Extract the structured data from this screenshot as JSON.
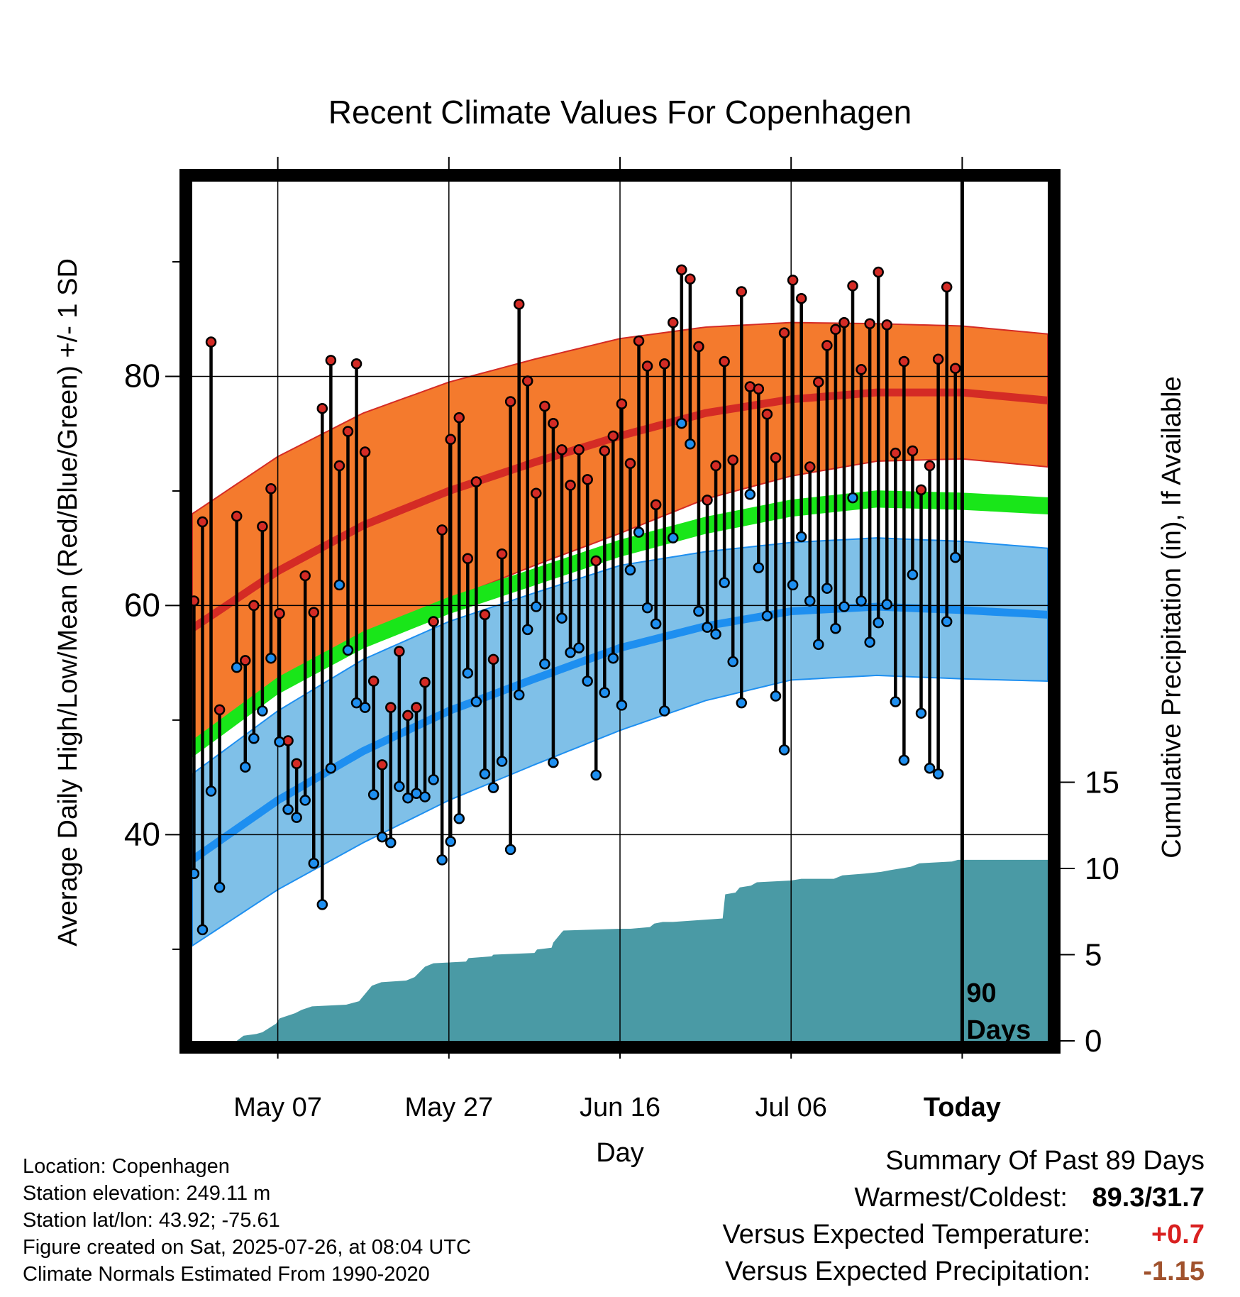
{
  "chart_data": {
    "type": "line",
    "title": "Recent Climate Values For Copenhagen",
    "xlabel": "Day",
    "ylabel": "Average Daily High/Low/Mean (Red/Blue/Green) +/- 1 SD",
    "y2label": "Cumulative Precipitation (in), If Available",
    "x_tick_labels": [
      "May 07",
      "May 27",
      "Jun 16",
      "Jul 06",
      "Today"
    ],
    "x_tick_days": [
      10,
      30,
      50,
      70,
      90
    ],
    "x_range_days": [
      0,
      100
    ],
    "y_ticks": [
      40,
      60,
      80
    ],
    "y_range": [
      22,
      97
    ],
    "y2_ticks": [
      0,
      5,
      10,
      15
    ],
    "today_label": "90\nDays",
    "grid": true,
    "colors": {
      "high_band": "#f47a2d",
      "high_mean": "#d42b25",
      "low_band": "#7fc0e8",
      "low_mean": "#1e8ff0",
      "mean": "#19e619",
      "precip": "#4a9aa5",
      "high_marker": "#d42b25",
      "low_marker": "#1e8ff0"
    },
    "normals": {
      "days": [
        0,
        10,
        20,
        30,
        40,
        50,
        60,
        70,
        80,
        90,
        100
      ],
      "high_mean": [
        58,
        63,
        67,
        70,
        72.5,
        74.8,
        76.8,
        78,
        78.6,
        78.6,
        77.9
      ],
      "high_sd": [
        10,
        10,
        9.8,
        9.5,
        9,
        8.5,
        7.5,
        6.7,
        6,
        5.8,
        5.8
      ],
      "mean": [
        47.5,
        53,
        57,
        60,
        62.5,
        65,
        67,
        68.5,
        69.3,
        69.1,
        68.7
      ],
      "mean_width": 1.5,
      "low_mean": [
        37.8,
        43,
        47.3,
        50.8,
        53.6,
        56.3,
        58.2,
        59.5,
        59.9,
        59.6,
        59.2
      ],
      "low_sd": [
        7.5,
        7.8,
        8,
        7.8,
        7.5,
        7.2,
        6.5,
        6,
        6,
        6,
        5.8
      ]
    },
    "series": [
      {
        "name": "High",
        "days": [
          0.2,
          1.2,
          2.2,
          3.2,
          5.2,
          6.2,
          7.2,
          8.2,
          9.2,
          10.2,
          11.2,
          12.2,
          13.2,
          14.2,
          15.2,
          16.2,
          17.2,
          18.2,
          19.2,
          20.2,
          21.2,
          22.2,
          23.2,
          24.2,
          25.2,
          26.2,
          27.2,
          28.2,
          29.2,
          30.2,
          31.2,
          32.2,
          33.2,
          34.2,
          35.2,
          36.2,
          37.2,
          38.2,
          39.2,
          40.2,
          41.2,
          42.2,
          43.2,
          44.2,
          45.2,
          46.2,
          47.2,
          48.2,
          49.2,
          50.2,
          51.2,
          52.2,
          53.2,
          54.2,
          55.2,
          56.2,
          57.2,
          58.2,
          59.2,
          60.2,
          61.2,
          62.2,
          63.2,
          64.2,
          65.2,
          66.2,
          67.2,
          68.2,
          69.2,
          70.2,
          71.2,
          72.2,
          73.2,
          74.2,
          75.2,
          76.2,
          77.2,
          78.2,
          79.2,
          80.2,
          81.2,
          82.2,
          83.2,
          84.2,
          85.2,
          86.2,
          87.2,
          88.2,
          89.2
        ],
        "values": [
          60.4,
          67.3,
          83,
          50.9,
          67.8,
          55.2,
          60,
          66.9,
          70.2,
          59.3,
          48.2,
          46.2,
          62.6,
          59.4,
          77.2,
          81.4,
          72.2,
          75.2,
          81.1,
          73.4,
          53.4,
          46.1,
          51.1,
          56,
          50.4,
          51.1,
          53.3,
          58.6,
          66.6,
          74.5,
          76.4,
          64.1,
          70.8,
          59.2,
          55.3,
          64.5,
          77.8,
          86.3,
          79.6,
          69.8,
          77.4,
          75.9,
          73.6,
          70.5,
          73.6,
          71,
          63.9,
          73.5,
          74.8,
          77.6,
          72.4,
          83.1,
          80.9,
          68.8,
          81.1,
          84.7,
          89.3,
          88.5,
          82.6,
          69.2,
          72.2,
          81.3,
          72.7,
          87.4,
          79.1,
          78.9,
          76.7,
          72.9,
          83.8,
          88.4,
          86.8,
          72.1,
          79.5,
          82.7,
          84.1,
          84.7,
          87.9,
          80.6,
          84.6,
          89.1,
          84.5,
          73.3,
          81.3,
          73.5,
          70.1,
          72.2,
          81.5,
          87.8,
          80.7
        ]
      },
      {
        "name": "Low",
        "days": [
          0.2,
          1.2,
          2.2,
          3.2,
          5.2,
          6.2,
          7.2,
          8.2,
          9.2,
          10.2,
          11.2,
          12.2,
          13.2,
          14.2,
          15.2,
          16.2,
          17.2,
          18.2,
          19.2,
          20.2,
          21.2,
          22.2,
          23.2,
          24.2,
          25.2,
          26.2,
          27.2,
          28.2,
          29.2,
          30.2,
          31.2,
          32.2,
          33.2,
          34.2,
          35.2,
          36.2,
          37.2,
          38.2,
          39.2,
          40.2,
          41.2,
          42.2,
          43.2,
          44.2,
          45.2,
          46.2,
          47.2,
          48.2,
          49.2,
          50.2,
          51.2,
          52.2,
          53.2,
          54.2,
          55.2,
          56.2,
          57.2,
          58.2,
          59.2,
          60.2,
          61.2,
          62.2,
          63.2,
          64.2,
          65.2,
          66.2,
          67.2,
          68.2,
          69.2,
          70.2,
          71.2,
          72.2,
          73.2,
          74.2,
          75.2,
          76.2,
          77.2,
          78.2,
          79.2,
          80.2,
          81.2,
          82.2,
          83.2,
          84.2,
          85.2,
          86.2,
          87.2,
          88.2,
          89.2
        ],
        "values": [
          36.6,
          31.7,
          43.8,
          35.4,
          54.6,
          45.9,
          48.4,
          50.8,
          55.4,
          48.1,
          42.2,
          41.5,
          43,
          37.5,
          33.9,
          45.8,
          61.8,
          56.1,
          51.5,
          51.1,
          43.5,
          39.8,
          39.3,
          44.2,
          43.2,
          43.6,
          43.3,
          44.8,
          37.8,
          39.4,
          41.4,
          54.1,
          51.6,
          45.3,
          44.1,
          46.4,
          38.7,
          52.2,
          57.9,
          59.9,
          54.9,
          46.3,
          58.9,
          55.9,
          56.3,
          53.4,
          45.2,
          52.4,
          55.4,
          51.3,
          63.1,
          66.4,
          59.8,
          58.4,
          50.8,
          65.9,
          75.9,
          74.1,
          59.5,
          58.1,
          57.5,
          62,
          55.1,
          51.5,
          69.7,
          63.3,
          59.1,
          52.1,
          47.4,
          61.8,
          66,
          60.4,
          56.6,
          61.5,
          58,
          59.9,
          69.4,
          60.4,
          56.8,
          58.5,
          60.1,
          51.6,
          46.5,
          62.7,
          50.6,
          45.8,
          45.3,
          58.6,
          64.2
        ]
      },
      {
        "name": "Cumulative Precipitation",
        "days": [
          0,
          5.2,
          6,
          7.5,
          8.2,
          9.8,
          10.2,
          12,
          12.8,
          14,
          18,
          19.5,
          21,
          22.1,
          25,
          26,
          27.2,
          28.2,
          32,
          32.3,
          35,
          35.2,
          40,
          40.3,
          42,
          42.2,
          43.2,
          43.4,
          50,
          51.2,
          53.5,
          54,
          55,
          56.2,
          62,
          62.3,
          63.5,
          64,
          65.3,
          66,
          70,
          71.2,
          75,
          76,
          78.6,
          80.5,
          81.6,
          84,
          85,
          88.8,
          89.5,
          100
        ],
        "values": [
          0,
          0,
          0.3,
          0.4,
          0.5,
          1,
          1.3,
          1.6,
          1.8,
          2,
          2.1,
          2.3,
          3.2,
          3.4,
          3.5,
          3.7,
          4.3,
          4.5,
          4.6,
          4.8,
          4.9,
          5,
          5.1,
          5.3,
          5.4,
          5.7,
          6.3,
          6.4,
          6.5,
          6.5,
          6.6,
          6.8,
          6.9,
          6.9,
          7.1,
          8.5,
          8.6,
          8.9,
          9,
          9.2,
          9.3,
          9.4,
          9.4,
          9.6,
          9.7,
          9.8,
          9.9,
          10.1,
          10.3,
          10.4,
          10.5,
          10.5
        ]
      }
    ]
  },
  "info": {
    "location": "Location: Copenhagen",
    "elevation": "Station elevation: 249.11 m",
    "latlon": "Station lat/lon: 43.92; -75.61",
    "created": "Figure created on Sat, 2025-07-26, at 08:04 UTC",
    "normals": "Climate Normals Estimated From 1990-2020"
  },
  "summary": {
    "title": "Summary Of Past 89 Days",
    "warmest_label": "Warmest/Coldest:",
    "warmest_value": "89.3/31.7",
    "temp_label": "Versus Expected Temperature:",
    "temp_value": "+0.7",
    "precip_label": "Versus Expected Precipitation:",
    "precip_value": "-1.15"
  }
}
